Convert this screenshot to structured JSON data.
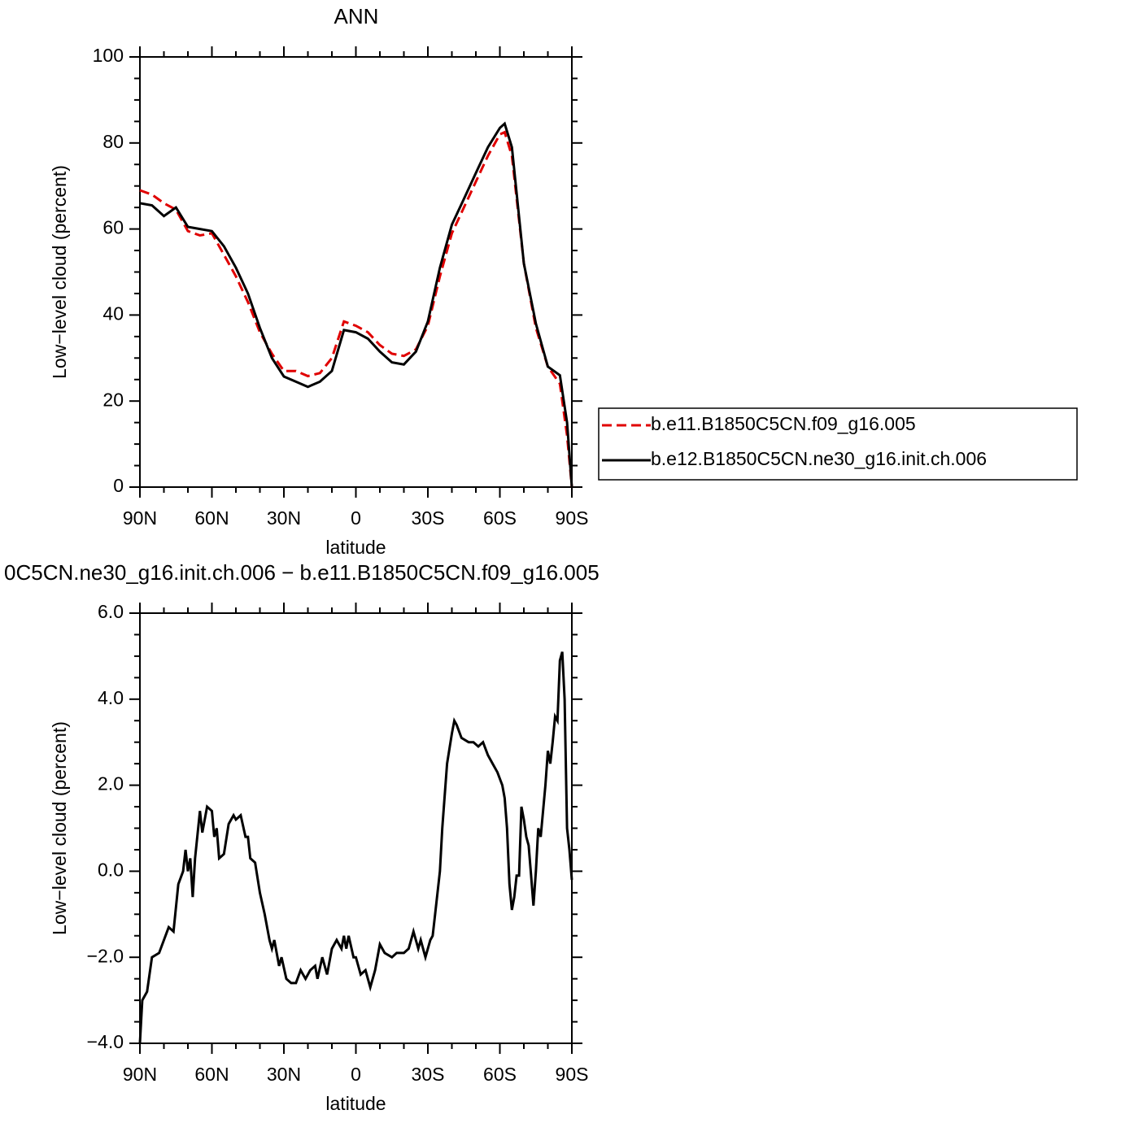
{
  "chart_data": [
    {
      "type": "line",
      "title": "ANN",
      "xlabel": "latitude",
      "ylabel": "Low−level cloud (percent)",
      "xlim": [
        90,
        -90
      ],
      "xticks": [
        {
          "value": 90,
          "label": "90N"
        },
        {
          "value": 60,
          "label": "60N"
        },
        {
          "value": 30,
          "label": "30N"
        },
        0,
        {
          "value": -30,
          "label": "30S"
        },
        {
          "value": -60,
          "label": "60S"
        },
        {
          "value": -90,
          "label": "90S"
        }
      ],
      "ylim": [
        0,
        100
      ],
      "yticks": [
        0,
        20,
        40,
        60,
        80,
        100
      ],
      "legend": "outside-right",
      "x": [
        90,
        85,
        80,
        75,
        70,
        65,
        60,
        55,
        50,
        45,
        40,
        35,
        30,
        25,
        20,
        15,
        10,
        5,
        0,
        -5,
        -10,
        -15,
        -20,
        -25,
        -30,
        -35,
        -40,
        -45,
        -50,
        -55,
        -60,
        -62,
        -65,
        -70,
        -75,
        -80,
        -85,
        -88,
        -90
      ],
      "series": [
        {
          "name": "b.e11.B1850C5CN.f09_g16.005",
          "color": "#e00000",
          "dash": true,
          "values": [
            69,
            68,
            66,
            64.5,
            59.5,
            58.5,
            59,
            54,
            49,
            43,
            36,
            31,
            27,
            27,
            25.8,
            26.5,
            30,
            38.5,
            37.5,
            36,
            33,
            31,
            30.5,
            32,
            37.5,
            49,
            59,
            65,
            71,
            77,
            82,
            82.5,
            77,
            52,
            37,
            28,
            24,
            12,
            0
          ]
        },
        {
          "name": "b.e12.B1850C5CN.ne30_g16.init.ch.006",
          "color": "#000000",
          "dash": false,
          "values": [
            66,
            65.5,
            63,
            65,
            60.5,
            60,
            59.5,
            56,
            51,
            45,
            37,
            30,
            25.7,
            24.5,
            23.3,
            24.5,
            27,
            36.5,
            36,
            34.5,
            31.5,
            29,
            28.5,
            31.5,
            38.5,
            51,
            61,
            67,
            73,
            79,
            83.5,
            84.5,
            79,
            52,
            38,
            28,
            26,
            15,
            0
          ]
        }
      ]
    },
    {
      "type": "line",
      "title": "0C5CN.ne30_g16.init.ch.006 − b.e11.B1850C5CN.f09_g16.005",
      "xlabel": "latitude",
      "ylabel": "Low−level cloud (percent)",
      "xlim": [
        90,
        -90
      ],
      "xticks": [
        {
          "value": 90,
          "label": "90N"
        },
        {
          "value": 60,
          "label": "60N"
        },
        {
          "value": 30,
          "label": "30N"
        },
        0,
        {
          "value": -30,
          "label": "30S"
        },
        {
          "value": -60,
          "label": "60S"
        },
        {
          "value": -90,
          "label": "90S"
        }
      ],
      "ylim": [
        -4,
        6
      ],
      "yticks": [
        {
          "value": -4,
          "label": "−4.0"
        },
        {
          "value": -2,
          "label": "−2.0"
        },
        {
          "value": 0,
          "label": "0.0"
        },
        {
          "value": 2,
          "label": "2.0"
        },
        {
          "value": 4,
          "label": "4.0"
        },
        {
          "value": 6,
          "label": "6.0"
        }
      ],
      "x": [
        90,
        89,
        87,
        85,
        82,
        78,
        76,
        74,
        72,
        71,
        70,
        69,
        68,
        67,
        65,
        64,
        62,
        60,
        59,
        58,
        57,
        55,
        53,
        51,
        50,
        48,
        46,
        45,
        44,
        42,
        40,
        38,
        36,
        35,
        34,
        32,
        31,
        29,
        27,
        25,
        23,
        21,
        19,
        17,
        16,
        14,
        12,
        10,
        8,
        6,
        5,
        4,
        3,
        1,
        0,
        -2,
        -4,
        -6,
        -8,
        -10,
        -12,
        -15,
        -17,
        -20,
        -22,
        -24,
        -26,
        -27,
        -29,
        -31,
        -32,
        -33,
        -35,
        -36,
        -38,
        -40,
        -41,
        -42,
        -44,
        -47,
        -49,
        -51,
        -53,
        -55,
        -57,
        -59,
        -61,
        -62,
        -63,
        -64,
        -65,
        -66,
        -67,
        -68,
        -69,
        -70,
        -71,
        -72,
        -73,
        -74,
        -75,
        -76,
        -77,
        -79,
        -80,
        -81,
        -82,
        -83,
        -84,
        -85,
        -86,
        -87,
        -88,
        -89,
        -90
      ],
      "series": [
        {
          "color": "#000000",
          "dash": false,
          "values": [
            -4,
            -3,
            -2.8,
            -2,
            -1.9,
            -1.3,
            -1.4,
            -0.3,
            0,
            0.5,
            0,
            0.3,
            -0.6,
            0.3,
            1.4,
            0.9,
            1.5,
            1.4,
            0.8,
            1.0,
            0.3,
            0.4,
            1.1,
            1.3,
            1.2,
            1.3,
            0.8,
            0.8,
            0.3,
            0.2,
            -0.5,
            -1.0,
            -1.6,
            -1.8,
            -1.6,
            -2.2,
            -2.0,
            -2.5,
            -2.6,
            -2.6,
            -2.3,
            -2.5,
            -2.3,
            -2.2,
            -2.5,
            -2.0,
            -2.4,
            -1.8,
            -1.6,
            -1.8,
            -1.5,
            -1.8,
            -1.5,
            -2.0,
            -2.0,
            -2.4,
            -2.3,
            -2.7,
            -2.3,
            -1.7,
            -1.9,
            -2.0,
            -1.9,
            -1.9,
            -1.8,
            -1.4,
            -1.8,
            -1.6,
            -2.0,
            -1.6,
            -1.5,
            -1.0,
            0,
            1.0,
            2.5,
            3.2,
            3.5,
            3.4,
            3.1,
            3.0,
            3.0,
            2.9,
            3.0,
            2.7,
            2.5,
            2.3,
            2.0,
            1.7,
            1.0,
            -0.3,
            -0.9,
            -0.6,
            -0.1,
            -0.1,
            1.5,
            1.2,
            0.8,
            0.6,
            -0.1,
            -0.8,
            0.0,
            1.0,
            0.8,
            2.0,
            2.8,
            2.5,
            3.0,
            3.6,
            3.5,
            4.9,
            5.1,
            4.0,
            1.0,
            0.5,
            -0.2
          ]
        }
      ]
    }
  ]
}
